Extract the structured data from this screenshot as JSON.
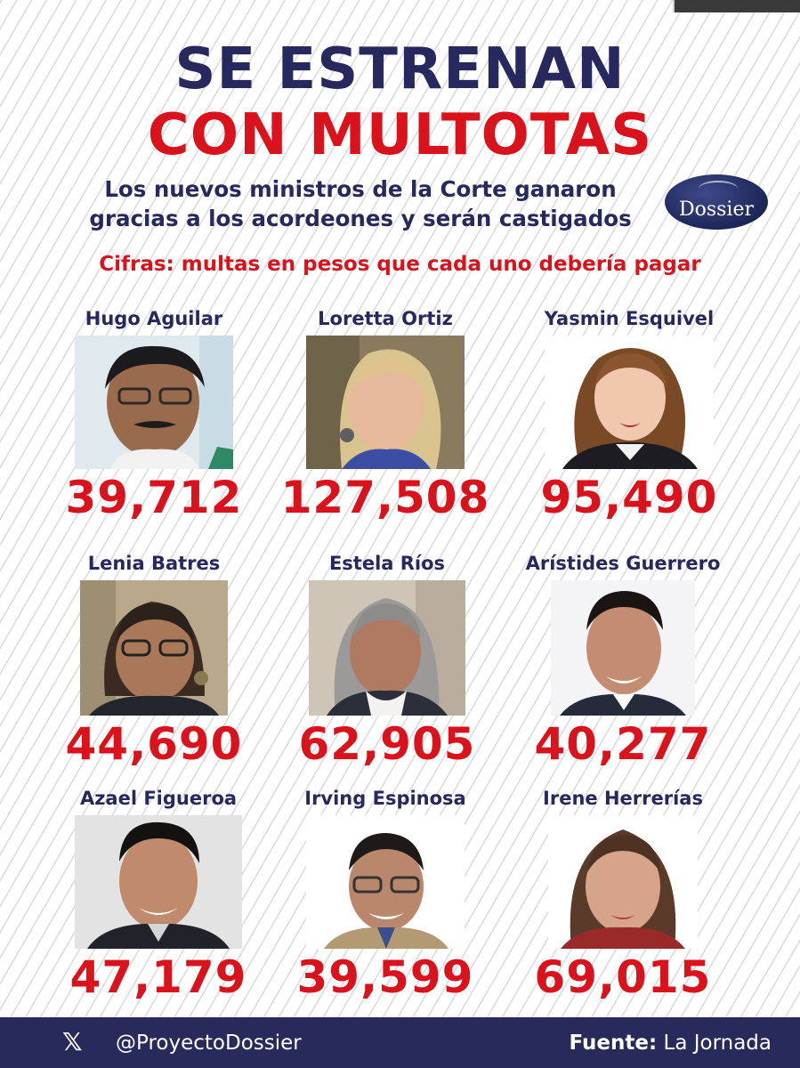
{
  "headline": {
    "line1": "SE ESTRENAN",
    "line2": "CON MULTOTAS"
  },
  "subtitle": {
    "line1": "Los nuevos ministros de la Corte ganaron",
    "line2": "gracias a los acordeones y serán castigados"
  },
  "logo": {
    "text": "Dossier",
    "icon": "horse-logo-icon"
  },
  "note": "Cifras: multas en pesos que cada uno debería pagar",
  "ministers": [
    {
      "name": "Hugo Aguilar",
      "amount": "39,712"
    },
    {
      "name": "Loretta Ortiz",
      "amount": "127,508"
    },
    {
      "name": "Yasmin Esquivel",
      "amount": "95,490"
    },
    {
      "name": "Lenia Batres",
      "amount": "44,690"
    },
    {
      "name": "Estela Ríos",
      "amount": "62,905"
    },
    {
      "name": "Arístides Guerrero",
      "amount": "40,277"
    },
    {
      "name": "Azael Figueroa",
      "amount": "47,179"
    },
    {
      "name": "Irving Espinosa",
      "amount": "39,599"
    },
    {
      "name": "Irene Herrerías",
      "amount": "69,015"
    }
  ],
  "footer": {
    "social_icon": "x-logo-icon",
    "social_glyph": "𝕏",
    "handle": "@ProyectoDossier",
    "source_label": "Fuente:",
    "source_value": "La Jornada"
  },
  "colors": {
    "navy": "#27285e",
    "red": "#d9121b",
    "footer_bg": "#282a5c"
  }
}
